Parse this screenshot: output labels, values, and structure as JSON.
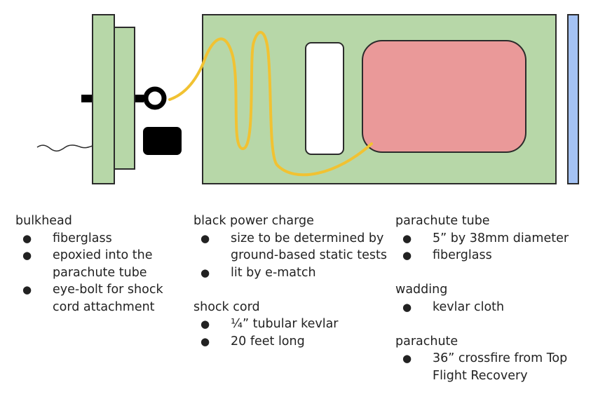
{
  "colors": {
    "fill_green": "#b7d7a8",
    "outline": "#2b2b2b",
    "cord_yellow": "#f1c232",
    "parachute_pink": "#ea9999",
    "wadding_white": "#ffffff",
    "cap_blue": "#a4c2f4",
    "charge_black": "#000000"
  },
  "bulkhead": {
    "title": "bulkhead",
    "items": [
      "fiberglass",
      "epoxied into the parachute tube",
      "eye-bolt for shock cord attachment"
    ]
  },
  "charge": {
    "title": "black power charge",
    "items": [
      "size to be determined by ground-based static tests",
      "lit by e-match"
    ]
  },
  "shock_cord": {
    "title": "shock cord",
    "items": [
      "¼” tubular kevlar",
      "20 feet long"
    ]
  },
  "tube": {
    "title": "parachute tube",
    "items": [
      "5” by 38mm diameter",
      "fiberglass"
    ]
  },
  "wadding": {
    "title": "wadding",
    "items": [
      "kevlar cloth"
    ]
  },
  "parachute": {
    "title": "parachute",
    "items": [
      "36” crossfire from Top Flight Recovery"
    ]
  }
}
